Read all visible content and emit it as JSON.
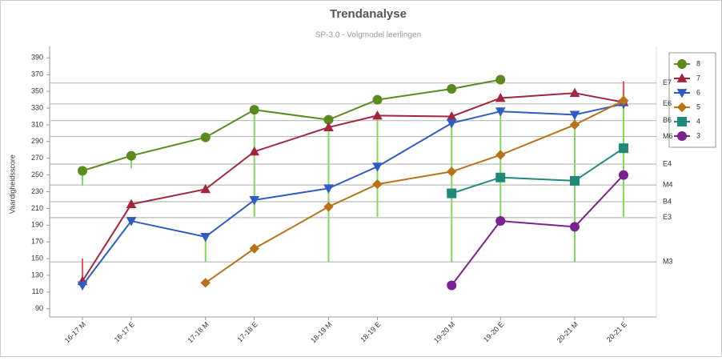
{
  "chart_data": {
    "type": "line",
    "title": "Trendanalyse",
    "subtitle": "SP-3.0 - Volgmodel leerlingen",
    "y_label": "Vaardigheidsscore",
    "categories": [
      "16-17 M",
      "16-17 E",
      "17-18 M",
      "17-18 E",
      "18-19 M",
      "18-19 E",
      "19-20 M",
      "19-20 E",
      "20-21 M",
      "20-21 E"
    ],
    "ylim": [
      84,
      398
    ],
    "yticks": [
      90,
      110,
      130,
      150,
      170,
      190,
      210,
      230,
      250,
      270,
      290,
      310,
      330,
      350,
      370,
      390
    ],
    "grid": false,
    "legend": "right",
    "series": [
      {
        "name": "8",
        "color": "#5b8a1e",
        "marker": "circle",
        "values": [
          255,
          273,
          295,
          328,
          316,
          340,
          353,
          364,
          null,
          null
        ]
      },
      {
        "name": "7",
        "color": "#a3253e",
        "marker": "triangle-up",
        "values": [
          123,
          215,
          233,
          278,
          307,
          321,
          320,
          342,
          348,
          337
        ]
      },
      {
        "name": "6",
        "color": "#2e5cc4",
        "marker": "triangle-down",
        "values": [
          118,
          195,
          176,
          220,
          234,
          260,
          312,
          326,
          322,
          335
        ]
      },
      {
        "name": "5",
        "color": "#b8731a",
        "marker": "diamond",
        "values": [
          null,
          null,
          121,
          162,
          212,
          239,
          254,
          274,
          310,
          339
        ]
      },
      {
        "name": "4",
        "color": "#1f8a7a",
        "marker": "square",
        "values": [
          null,
          null,
          null,
          null,
          null,
          null,
          228,
          247,
          243,
          282
        ]
      },
      {
        "name": "3",
        "color": "#7b2190",
        "marker": "circle",
        "values": [
          null,
          null,
          null,
          null,
          null,
          null,
          118,
          195,
          188,
          250
        ]
      }
    ],
    "range_bars": [
      {
        "color": "#7ddc5a",
        "low": [
          237,
          258,
          146,
          200,
          146,
          200,
          146,
          200,
          146,
          200
        ],
        "high": [
          255,
          273,
          176,
          328,
          307,
          321,
          312,
          326,
          322,
          335
        ]
      },
      {
        "color": "#f05050",
        "low": [
          123,
          null,
          null,
          null,
          null,
          null,
          null,
          null,
          null,
          337
        ],
        "high": [
          150,
          null,
          null,
          null,
          null,
          null,
          null,
          null,
          null,
          362
        ]
      }
    ],
    "reference_lines": [
      {
        "label": "E7",
        "value": 360
      },
      {
        "label": "E6",
        "value": 335
      },
      {
        "label": "B6",
        "value": 315
      },
      {
        "label": "M6",
        "value": 296
      },
      {
        "label": "E4",
        "value": 263
      },
      {
        "label": "M4",
        "value": 238
      },
      {
        "label": "B4",
        "value": 218
      },
      {
        "label": "E3",
        "value": 199
      },
      {
        "label": "M3",
        "value": 146
      }
    ]
  }
}
